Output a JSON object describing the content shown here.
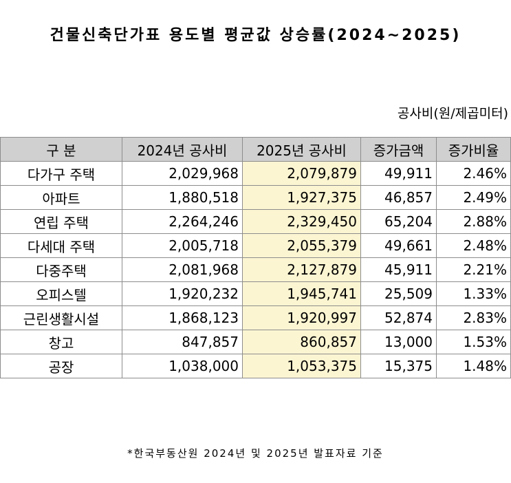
{
  "title": "건물신축단가표 용도별 평균값 상승률(2024~2025)",
  "unit": "공사비(원/제곱미터)",
  "table": {
    "headers": [
      "구 분",
      "2024년 공사비",
      "2025년 공사비",
      "증가금액",
      "증가비율"
    ],
    "rows": [
      [
        "다가구 주택",
        "2,029,968",
        "2,079,879",
        "49,911",
        "2.46%"
      ],
      [
        "아파트",
        "1,880,518",
        "1,927,375",
        "46,857",
        "2.49%"
      ],
      [
        "연립 주택",
        "2,264,246",
        "2,329,450",
        "65,204",
        "2.88%"
      ],
      [
        "다세대 주택",
        "2,005,718",
        "2,055,379",
        "49,661",
        "2.48%"
      ],
      [
        "다중주택",
        "2,081,968",
        "2,127,879",
        "45,911",
        "2.21%"
      ],
      [
        "오피스텔",
        "1,920,232",
        "1,945,741",
        "25,509",
        "1.33%"
      ],
      [
        "근린생활시설",
        "1,868,123",
        "1,920,997",
        "52,874",
        "2.83%"
      ],
      [
        "창고",
        "847,857",
        "860,857",
        "13,000",
        "1.53%"
      ],
      [
        "공장",
        "1,038,000",
        "1,053,375",
        "15,375",
        "1.48%"
      ]
    ]
  },
  "colors": {
    "header_bg": "#d0d0d0",
    "highlight_bg": "#fcf5d2",
    "border": "#8c8c8c"
  },
  "footnote": "*한국부동산원 2024년 및 2025년 발표자료 기준"
}
